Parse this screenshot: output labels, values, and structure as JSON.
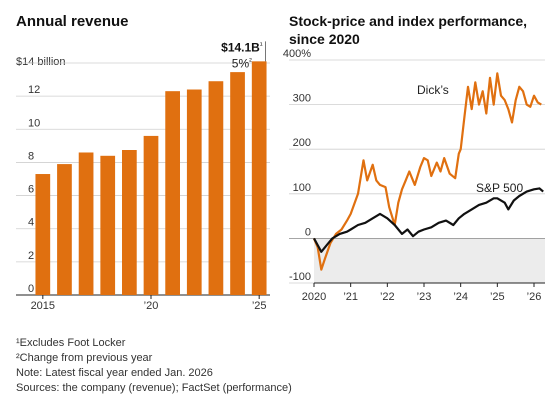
{
  "colors": {
    "orange": "#e07010",
    "black": "#111111",
    "grid": "#cfcfcf",
    "shade": "#ececec"
  },
  "chart_data": [
    {
      "type": "bar",
      "title": "Annual revenue",
      "unit_label": "$14 billion",
      "categories": [
        "2015",
        "2016",
        "2017",
        "2018",
        "2019",
        "2020",
        "2021",
        "2022",
        "2023",
        "2024",
        "2025"
      ],
      "values": [
        7.3,
        7.9,
        8.6,
        8.4,
        8.75,
        9.6,
        12.3,
        12.4,
        12.9,
        13.45,
        14.1
      ],
      "ylim": [
        0,
        14
      ],
      "y_ticks": [
        0,
        2,
        4,
        6,
        8,
        10,
        12
      ],
      "x_tick_labels": [
        {
          "index": 0,
          "label": "2015"
        },
        {
          "index": 5,
          "label": "’20"
        },
        {
          "index": 10,
          "label": "’25"
        }
      ],
      "annotation": {
        "value_label": "$14.1B",
        "value_note": "¹",
        "pct_label": "5%",
        "pct_note": "²"
      },
      "grid": "horizontal",
      "color": "#e07010"
    },
    {
      "type": "line",
      "title_lines": [
        "Stock-price and index performance,",
        "since 2020"
      ],
      "ylim": [
        -100,
        400
      ],
      "y_ticks": [
        -100,
        0,
        100,
        200,
        300,
        400
      ],
      "y_tick_labels": [
        "-100",
        "0",
        "100",
        "200",
        "300",
        "400%"
      ],
      "xlim": [
        2020,
        2026.3
      ],
      "x_tick_labels": [
        "2020",
        "’21",
        "’22",
        "’23",
        "’24",
        "’25",
        "’26"
      ],
      "x_tick_values": [
        2020,
        2021,
        2022,
        2023,
        2024,
        2025,
        2026
      ],
      "grid": "horizontal",
      "series": [
        {
          "name": "Dick’s",
          "color": "#e07010",
          "x": [
            2020.0,
            2020.1,
            2020.2,
            2020.3,
            2020.45,
            2020.6,
            2020.75,
            2020.9,
            2021.0,
            2021.2,
            2021.35,
            2021.45,
            2021.6,
            2021.7,
            2021.8,
            2021.95,
            2022.05,
            2022.2,
            2022.3,
            2022.4,
            2022.5,
            2022.6,
            2022.75,
            2022.9,
            2023.0,
            2023.1,
            2023.2,
            2023.35,
            2023.45,
            2023.55,
            2023.7,
            2023.85,
            2023.95,
            2024.0,
            2024.1,
            2024.2,
            2024.3,
            2024.4,
            2024.5,
            2024.6,
            2024.7,
            2024.8,
            2024.9,
            2025.0,
            2025.1,
            2025.2,
            2025.3,
            2025.4,
            2025.5,
            2025.6,
            2025.7,
            2025.8,
            2025.9,
            2026.0,
            2026.1,
            2026.2
          ],
          "y": [
            0,
            -20,
            -70,
            -45,
            -10,
            10,
            20,
            40,
            55,
            100,
            175,
            130,
            165,
            130,
            120,
            115,
            70,
            30,
            80,
            110,
            130,
            150,
            120,
            160,
            180,
            175,
            140,
            170,
            150,
            180,
            145,
            135,
            190,
            200,
            270,
            340,
            290,
            350,
            300,
            330,
            280,
            360,
            300,
            370,
            320,
            310,
            290,
            260,
            310,
            340,
            330,
            300,
            295,
            320,
            305,
            300
          ]
        },
        {
          "name": "S&P 500",
          "color": "#111111",
          "x": [
            2020.0,
            2020.1,
            2020.2,
            2020.35,
            2020.5,
            2020.7,
            2020.9,
            2021.0,
            2021.2,
            2021.4,
            2021.6,
            2021.8,
            2022.0,
            2022.2,
            2022.4,
            2022.55,
            2022.7,
            2022.85,
            2023.0,
            2023.2,
            2023.4,
            2023.6,
            2023.8,
            2023.95,
            2024.1,
            2024.3,
            2024.5,
            2024.7,
            2024.9,
            2025.0,
            2025.2,
            2025.3,
            2025.45,
            2025.6,
            2025.8,
            2026.0,
            2026.15,
            2026.25
          ],
          "y": [
            0,
            -15,
            -30,
            -15,
            0,
            10,
            15,
            20,
            30,
            35,
            45,
            55,
            45,
            30,
            10,
            20,
            5,
            15,
            20,
            25,
            35,
            40,
            30,
            45,
            55,
            65,
            75,
            80,
            90,
            90,
            80,
            65,
            85,
            95,
            105,
            110,
            112,
            105
          ]
        }
      ]
    }
  ],
  "notes": [
    "¹Excludes Foot Locker",
    "²Change from previous year",
    "Note: Latest fiscal year ended Jan. 2026",
    "Sources: the company (revenue); FactSet (performance)"
  ]
}
